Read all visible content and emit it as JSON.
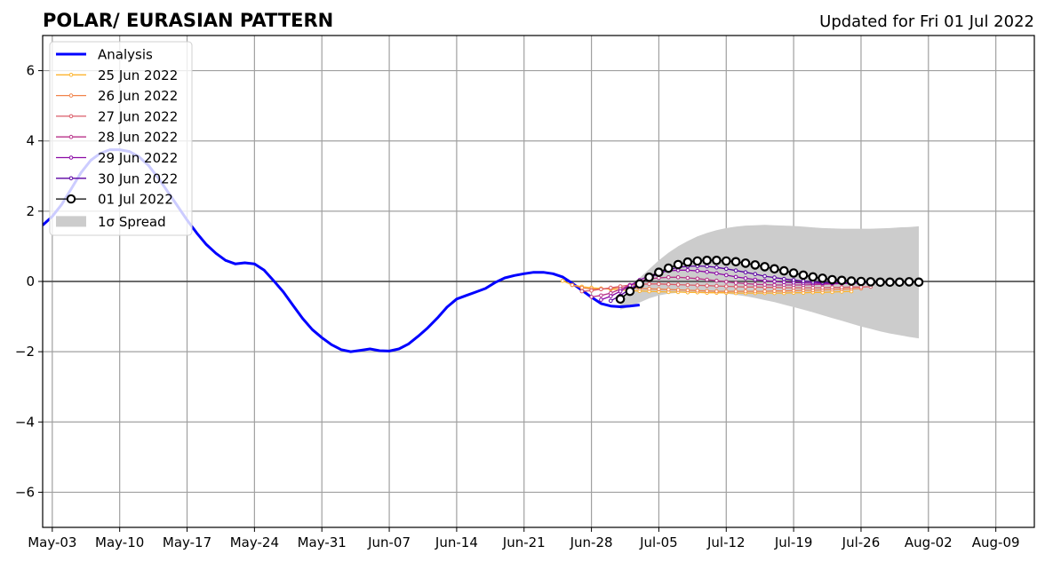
{
  "chart_data": {
    "type": "line",
    "title": "POLAR/ EURASIAN  PATTERN",
    "subtitle": "Updated for Fri 01 Jul 2022",
    "xlim": [
      "2022-05-02",
      "2022-08-13"
    ],
    "ylim": [
      -7,
      7
    ],
    "x_ticks": [
      {
        "date": "2022-05-03",
        "label": "May-03"
      },
      {
        "date": "2022-05-10",
        "label": "May-10"
      },
      {
        "date": "2022-05-17",
        "label": "May-17"
      },
      {
        "date": "2022-05-24",
        "label": "May-24"
      },
      {
        "date": "2022-05-31",
        "label": "May-31"
      },
      {
        "date": "2022-06-07",
        "label": "Jun-07"
      },
      {
        "date": "2022-06-14",
        "label": "Jun-14"
      },
      {
        "date": "2022-06-21",
        "label": "Jun-21"
      },
      {
        "date": "2022-06-28",
        "label": "Jun-28"
      },
      {
        "date": "2022-07-05",
        "label": "Jul-05"
      },
      {
        "date": "2022-07-12",
        "label": "Jul-12"
      },
      {
        "date": "2022-07-19",
        "label": "Jul-19"
      },
      {
        "date": "2022-07-26",
        "label": "Jul-26"
      },
      {
        "date": "2022-08-02",
        "label": "Aug-02"
      },
      {
        "date": "2022-08-09",
        "label": "Aug-09"
      }
    ],
    "y_ticks": [
      {
        "value": 6,
        "label": "6"
      },
      {
        "value": 4,
        "label": "4"
      },
      {
        "value": 2,
        "label": "2"
      },
      {
        "value": 0,
        "label": "0"
      },
      {
        "value": -2,
        "label": "−2"
      },
      {
        "value": -4,
        "label": "−4"
      },
      {
        "value": -6,
        "label": "−6"
      }
    ],
    "grid": true,
    "legend_position": "top-left",
    "analysis": {
      "name": "Analysis",
      "color": "#0000ff",
      "start": "2022-05-02",
      "values": [
        1.6,
        1.85,
        2.2,
        2.65,
        3.1,
        3.45,
        3.65,
        3.75,
        3.75,
        3.7,
        3.55,
        3.3,
        2.95,
        2.55,
        2.15,
        1.75,
        1.38,
        1.05,
        0.8,
        0.6,
        0.5,
        0.53,
        0.5,
        0.32,
        0.02,
        -0.3,
        -0.68,
        -1.05,
        -1.37,
        -1.6,
        -1.8,
        -1.94,
        -2.0,
        -1.96,
        -1.92,
        -1.97,
        -1.98,
        -1.92,
        -1.78,
        -1.56,
        -1.32,
        -1.04,
        -0.73,
        -0.5,
        -0.4,
        -0.3,
        -0.2,
        -0.03,
        0.1,
        0.17,
        0.22,
        0.26,
        0.26,
        0.22,
        0.13,
        -0.05,
        -0.25,
        -0.45,
        -0.63,
        -0.7,
        -0.72,
        -0.7,
        -0.67
      ]
    },
    "series": [
      {
        "name": "25 Jun 2022",
        "color": "#fdb42f",
        "start": "2022-06-25",
        "values": [
          0.02,
          -0.1,
          -0.15,
          -0.18,
          -0.2,
          -0.22,
          -0.24,
          -0.26,
          -0.27,
          -0.28,
          -0.29,
          -0.3,
          -0.3,
          -0.31,
          -0.31,
          -0.32,
          -0.32,
          -0.32,
          -0.33,
          -0.33,
          -0.33,
          -0.33,
          -0.33,
          -0.33,
          -0.32,
          -0.32,
          -0.31,
          -0.31,
          -0.3,
          -0.29,
          -0.28
        ]
      },
      {
        "name": "26 Jun 2022",
        "color": "#f1844b",
        "start": "2022-06-26",
        "values": [
          -0.1,
          -0.18,
          -0.22,
          -0.22,
          -0.2,
          -0.18,
          -0.18,
          -0.2,
          -0.21,
          -0.22,
          -0.23,
          -0.24,
          -0.25,
          -0.26,
          -0.27,
          -0.28,
          -0.28,
          -0.28,
          -0.28,
          -0.28,
          -0.28,
          -0.27,
          -0.27,
          -0.26,
          -0.25,
          -0.25,
          -0.24,
          -0.23,
          -0.22,
          -0.21,
          -0.2
        ]
      },
      {
        "name": "27 Jun 2022",
        "color": "#db5c68",
        "start": "2022-06-27",
        "values": [
          -0.28,
          -0.26,
          -0.22,
          -0.18,
          -0.14,
          -0.1,
          -0.08,
          -0.07,
          -0.07,
          -0.08,
          -0.09,
          -0.1,
          -0.11,
          -0.12,
          -0.13,
          -0.14,
          -0.15,
          -0.16,
          -0.16,
          -0.17,
          -0.17,
          -0.18,
          -0.18,
          -0.18,
          -0.18,
          -0.18,
          -0.17,
          -0.17,
          -0.16,
          -0.16,
          -0.15
        ]
      },
      {
        "name": "28 Jun 2022",
        "color": "#b83289",
        "start": "2022-06-28",
        "values": [
          -0.44,
          -0.4,
          -0.33,
          -0.22,
          -0.1,
          0.0,
          0.07,
          0.1,
          0.12,
          0.12,
          0.1,
          0.08,
          0.05,
          0.02,
          -0.01,
          -0.04,
          -0.06,
          -0.08,
          -0.09,
          -0.1,
          -0.1,
          -0.1,
          -0.1,
          -0.09,
          -0.08,
          -0.07,
          -0.06,
          -0.05,
          -0.04,
          -0.03,
          -0.02
        ]
      },
      {
        "name": "29 Jun 2022",
        "color": "#8b0aa5",
        "start": "2022-06-29",
        "values": [
          -0.52,
          -0.42,
          -0.28,
          -0.12,
          0.04,
          0.16,
          0.25,
          0.3,
          0.32,
          0.32,
          0.3,
          0.27,
          0.23,
          0.18,
          0.13,
          0.09,
          0.05,
          0.02,
          0.0,
          -0.02,
          -0.03,
          -0.04,
          -0.05,
          -0.05,
          -0.05,
          -0.05,
          -0.05,
          -0.04,
          -0.03,
          -0.02,
          -0.01
        ]
      },
      {
        "name": "30 Jun 2022",
        "color": "#5b02a3",
        "start": "2022-06-30",
        "values": [
          -0.55,
          -0.4,
          -0.22,
          -0.05,
          0.1,
          0.22,
          0.33,
          0.4,
          0.43,
          0.44,
          0.43,
          0.4,
          0.36,
          0.31,
          0.26,
          0.21,
          0.15,
          0.11,
          0.07,
          0.04,
          0.01,
          -0.01,
          -0.03,
          -0.04,
          -0.04,
          -0.04,
          -0.04,
          -0.03,
          -0.02,
          -0.01,
          0.0
        ]
      },
      {
        "name": "01 Jul 2022",
        "color": "#000000",
        "start": "2022-07-01",
        "values": [
          -0.5,
          -0.28,
          -0.07,
          0.12,
          0.26,
          0.38,
          0.48,
          0.55,
          0.58,
          0.6,
          0.6,
          0.58,
          0.56,
          0.52,
          0.47,
          0.42,
          0.36,
          0.3,
          0.24,
          0.18,
          0.13,
          0.09,
          0.05,
          0.03,
          0.01,
          0.0,
          -0.01,
          -0.02,
          -0.02,
          -0.02,
          -0.01,
          -0.02
        ]
      }
    ],
    "spread": {
      "name": "1σ Spread",
      "color": "#cccccc",
      "start": "2022-07-01",
      "upper": [
        -0.55,
        -0.2,
        0.1,
        0.35,
        0.6,
        0.82,
        1.0,
        1.15,
        1.28,
        1.38,
        1.46,
        1.52,
        1.56,
        1.59,
        1.6,
        1.61,
        1.6,
        1.59,
        1.58,
        1.56,
        1.54,
        1.52,
        1.51,
        1.5,
        1.5,
        1.5,
        1.5,
        1.51,
        1.52,
        1.54,
        1.55,
        1.57
      ],
      "lower": [
        -0.8,
        -0.72,
        -0.6,
        -0.48,
        -0.4,
        -0.35,
        -0.32,
        -0.3,
        -0.3,
        -0.31,
        -0.33,
        -0.35,
        -0.38,
        -0.42,
        -0.47,
        -0.53,
        -0.59,
        -0.66,
        -0.73,
        -0.8,
        -0.88,
        -0.96,
        -1.04,
        -1.12,
        -1.2,
        -1.28,
        -1.35,
        -1.42,
        -1.48,
        -1.53,
        -1.58,
        -1.62
      ]
    }
  }
}
